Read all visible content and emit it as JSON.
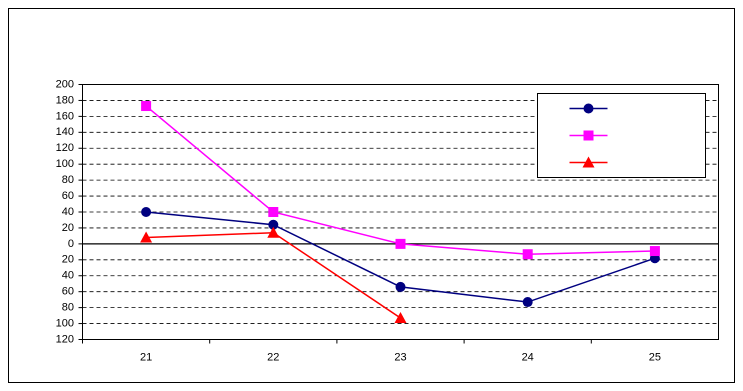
{
  "chart_data": {
    "type": "line",
    "categories": [
      "21",
      "22",
      "23",
      "24",
      "25"
    ],
    "series": [
      {
        "color": "#000080",
        "marker": "circle",
        "values": [
          40,
          24,
          -54,
          -73,
          -18
        ]
      },
      {
        "color": "#ff00ff",
        "marker": "square",
        "values": [
          173,
          40,
          0,
          -13,
          -9
        ]
      },
      {
        "color": "#ff0000",
        "marker": "triangle",
        "values": [
          8,
          14,
          -93,
          null,
          null
        ]
      }
    ],
    "ylim": [
      -120,
      200
    ],
    "yticks": [
      200,
      180,
      160,
      140,
      120,
      100,
      80,
      60,
      40,
      20,
      0,
      {
        "value": -20,
        "label": "20"
      },
      {
        "value": -40,
        "label": "40"
      },
      {
        "value": -60,
        "label": "60"
      },
      {
        "value": -80,
        "label": "80"
      },
      {
        "value": -100,
        "label": "100"
      },
      {
        "value": -120,
        "label": "120"
      }
    ],
    "grid": true,
    "grid_style": "dashed",
    "legend": "upper right"
  }
}
